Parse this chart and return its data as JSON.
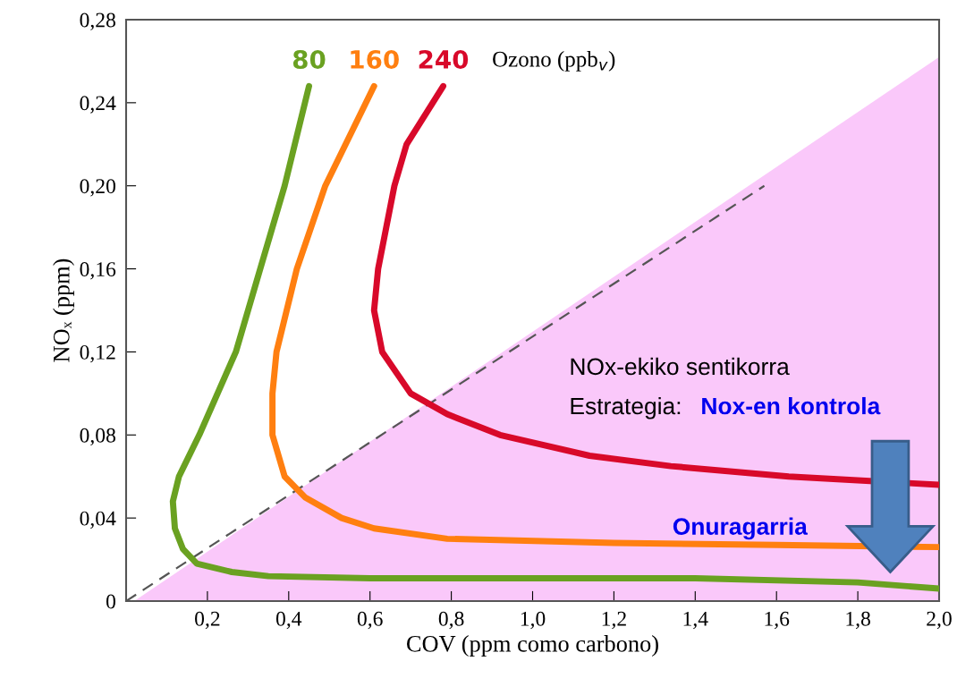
{
  "chart_data": {
    "type": "line",
    "xlabel": "COV (ppm como carbono)",
    "ylabel": "NOₓ (ppm)",
    "legend_title": "Ozono (ppb$_{v}$)",
    "xlim": [
      0,
      2.0
    ],
    "ylim": [
      0,
      0.28
    ],
    "xticks": [
      {
        "value": 0.2,
        "label": "0,2"
      },
      {
        "value": 0.4,
        "label": "0,4"
      },
      {
        "value": 0.6,
        "label": "0,6"
      },
      {
        "value": 0.8,
        "label": "0,8"
      },
      {
        "value": 1.0,
        "label": "1,0"
      },
      {
        "value": 1.2,
        "label": "1,2"
      },
      {
        "value": 1.4,
        "label": "1,4"
      },
      {
        "value": 1.6,
        "label": "1,6"
      },
      {
        "value": 1.8,
        "label": "1,8"
      },
      {
        "value": 2.0,
        "label": "2,0"
      }
    ],
    "yticks": [
      0,
      {
        "value": 0.04,
        "label": "0,04"
      },
      {
        "value": 0.08,
        "label": "0,08"
      },
      {
        "value": 0.12,
        "label": "0,12"
      },
      {
        "value": 0.16,
        "label": "0,16"
      },
      {
        "value": 0.2,
        "label": "0,20"
      },
      {
        "value": 0.24,
        "label": "0,24"
      },
      {
        "value": 0.28,
        "label": "0,28"
      }
    ],
    "grid": false,
    "legend": false,
    "series": [
      {
        "type": "area",
        "color": "#fac8fa",
        "x": [
          0.02,
          2.0,
          2.0
        ],
        "values": [
          0,
          0.262,
          0
        ]
      },
      {
        "type": "line",
        "line_style": "dashed",
        "color": "#555555",
        "x": [
          0,
          1.57
        ],
        "values": [
          0,
          0.2
        ]
      },
      {
        "name": "80",
        "color": "#6aa121",
        "x": [
          0.45,
          0.39,
          0.33,
          0.27,
          0.18,
          0.13,
          0.115,
          0.12,
          0.14,
          0.174,
          0.26,
          0.35,
          0.6,
          1.0,
          1.4,
          1.8,
          2.0
        ],
        "values": [
          0.248,
          0.2,
          0.16,
          0.12,
          0.08,
          0.06,
          0.048,
          0.035,
          0.025,
          0.018,
          0.014,
          0.012,
          0.011,
          0.011,
          0.011,
          0.009,
          0.006
        ]
      },
      {
        "name": "160",
        "color": "#ff7f10",
        "x": [
          0.61,
          0.49,
          0.42,
          0.37,
          0.36,
          0.36,
          0.39,
          0.44,
          0.53,
          0.61,
          0.79,
          1.2,
          1.6,
          2.0
        ],
        "values": [
          0.248,
          0.2,
          0.16,
          0.12,
          0.1,
          0.08,
          0.06,
          0.05,
          0.04,
          0.035,
          0.03,
          0.028,
          0.027,
          0.026
        ]
      },
      {
        "name": "240",
        "color": "#d8092a",
        "x": [
          0.78,
          0.69,
          0.66,
          0.62,
          0.61,
          0.63,
          0.7,
          0.79,
          0.92,
          1.14,
          1.34,
          1.63,
          2.0
        ],
        "values": [
          0.248,
          0.22,
          0.2,
          0.16,
          0.14,
          0.12,
          0.1,
          0.09,
          0.08,
          0.07,
          0.065,
          0.06,
          0.056
        ]
      }
    ],
    "annotations": [
      "NOx-ekiko sentikorra",
      "Estrategia: ",
      "Nox-en kontrola",
      "Onuragarria"
    ]
  }
}
